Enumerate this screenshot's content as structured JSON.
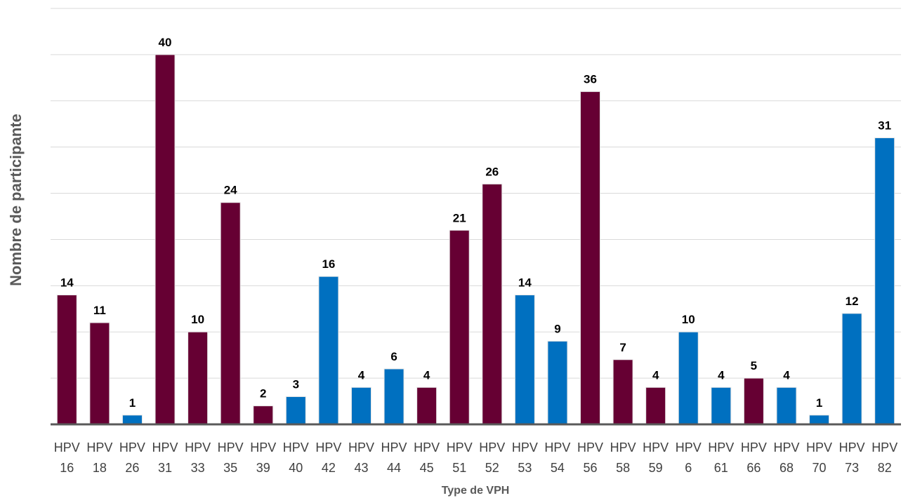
{
  "chart_data": {
    "type": "bar",
    "x_label": "Type de VPH",
    "y_label": "Nombre de participante",
    "categories": [
      "HPV 16",
      "HPV 18",
      "HPV 26",
      "HPV 31",
      "HPV 33",
      "HPV 35",
      "HPV 39",
      "HPV 40",
      "HPV 42",
      "HPV 43",
      "HPV 44",
      "HPV 45",
      "HPV 51",
      "HPV 52",
      "HPV 53",
      "HPV 54",
      "HPV 56",
      "HPV 58",
      "HPV 59",
      "HPV 6",
      "HPV 61",
      "HPV 66",
      "HPV 68",
      "HPV 70",
      "HPV 73",
      "HPV 82"
    ],
    "values": [
      14,
      11,
      1,
      40,
      10,
      24,
      2,
      3,
      16,
      4,
      6,
      4,
      21,
      26,
      14,
      9,
      36,
      7,
      4,
      10,
      4,
      5,
      4,
      1,
      12,
      31
    ],
    "colors": [
      "#660033",
      "#660033",
      "#0070c0",
      "#660033",
      "#660033",
      "#660033",
      "#660033",
      "#0070c0",
      "#0070c0",
      "#0070c0",
      "#0070c0",
      "#660033",
      "#660033",
      "#660033",
      "#0070c0",
      "#0070c0",
      "#660033",
      "#660033",
      "#660033",
      "#0070c0",
      "#0070c0",
      "#660033",
      "#0070c0",
      "#0070c0",
      "#0070c0",
      "#0070c0"
    ],
    "ylim": [
      0,
      45
    ],
    "yticks": [
      0,
      5,
      10,
      15,
      20,
      25,
      30,
      35,
      40,
      45
    ],
    "ytick_labels": false,
    "grid": true
  }
}
